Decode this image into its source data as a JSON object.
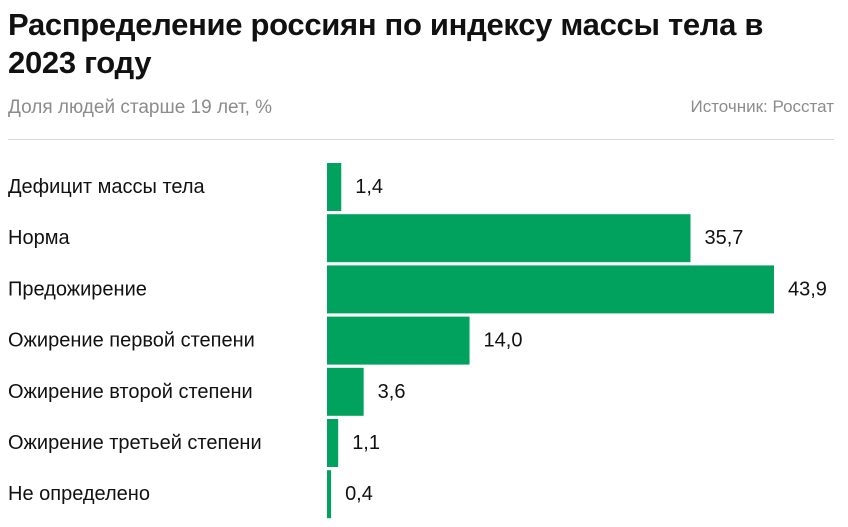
{
  "header": {
    "title": "Распределение россиян по индексу массы тела в 2023 году",
    "subtitle": "Доля людей старше 19 лет, %",
    "source": "Источник: Росстат"
  },
  "colors": {
    "bar": "#00a25e",
    "text": "#111111",
    "muted": "#8c8c8c",
    "divider": "#d9d9d9"
  },
  "chart_data": {
    "type": "bar",
    "orientation": "horizontal",
    "categories": [
      "Дефицит массы тела",
      "Норма",
      "Предожирение",
      "Ожирение первой степени",
      "Ожирение второй степени",
      "Ожирение третьей степени",
      "Не определено"
    ],
    "values": [
      1.4,
      35.7,
      43.9,
      14.0,
      3.6,
      1.1,
      0.4
    ],
    "value_labels": [
      "1,4",
      "35,7",
      "43,9",
      "14,0",
      "3,6",
      "1,1",
      "0,4"
    ],
    "xlim": [
      0,
      43.9
    ],
    "grid": false,
    "legend": "none"
  }
}
